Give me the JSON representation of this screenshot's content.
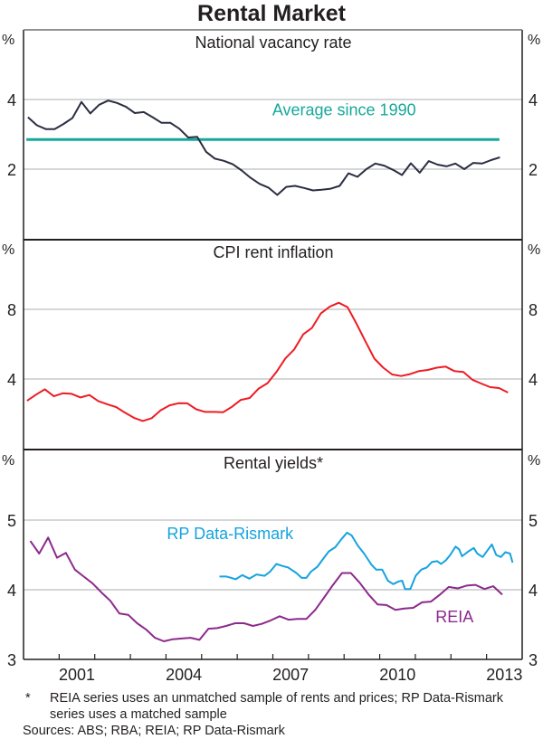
{
  "chart_data": {
    "type": "line",
    "title": "Rental Market",
    "x_range": [
      2000,
      2014
    ],
    "x_ticks": [
      2001,
      2004,
      2007,
      2010,
      2013
    ],
    "x_minor_ticks_every_years": 1,
    "panels": [
      {
        "id": "vacancy",
        "title": "National vacancy rate",
        "unit": "%",
        "ylim": [
          0,
          6
        ],
        "yticks": [
          2,
          4
        ],
        "grid": true,
        "series": [
          {
            "name": "National vacancy rate",
            "color": "#2b2d42",
            "start_year": 2000.125,
            "step_years": 0.25,
            "values": [
              3.49,
              3.26,
              3.15,
              3.15,
              3.3,
              3.47,
              3.93,
              3.6,
              3.85,
              3.97,
              3.9,
              3.79,
              3.61,
              3.64,
              3.49,
              3.33,
              3.33,
              3.16,
              2.91,
              2.93,
              2.5,
              2.3,
              2.24,
              2.14,
              1.96,
              1.75,
              1.58,
              1.47,
              1.26,
              1.49,
              1.52,
              1.46,
              1.39,
              1.41,
              1.44,
              1.52,
              1.88,
              1.78,
              2.0,
              2.16,
              2.1,
              1.98,
              1.83,
              2.17,
              1.9,
              2.23,
              2.13,
              2.08,
              2.16,
              2.0,
              2.18,
              2.16,
              2.26,
              2.34
            ]
          }
        ],
        "reference_lines": [
          {
            "name": "Average since 1990",
            "label": "Average since 1990",
            "color": "#17a89a",
            "value": 2.85,
            "x_from": 2000.08,
            "x_to": 2013.36
          }
        ]
      },
      {
        "id": "cpi",
        "title": "CPI rent inflation",
        "unit": "%",
        "ylim": [
          0,
          12
        ],
        "yticks": [
          4,
          8
        ],
        "grid": true,
        "series": [
          {
            "name": "CPI rent inflation",
            "color": "#ee1c25",
            "start_year": 2000.1,
            "step_years": 0.25,
            "values": [
              2.75,
              3.1,
              3.41,
              3.01,
              3.18,
              3.15,
              2.94,
              3.08,
              2.73,
              2.55,
              2.39,
              2.06,
              1.77,
              1.59,
              1.75,
              2.2,
              2.49,
              2.61,
              2.6,
              2.26,
              2.11,
              2.11,
              2.09,
              2.4,
              2.8,
              2.91,
              3.45,
              3.76,
              4.4,
              5.18,
              5.7,
              6.56,
              6.94,
              7.77,
              8.16,
              8.38,
              8.12,
              7.17,
              6.16,
              5.17,
              4.65,
              4.26,
              4.17,
              4.28,
              4.45,
              4.52,
              4.65,
              4.71,
              4.45,
              4.4,
              3.96,
              3.74,
              3.53,
              3.48,
              3.22
            ]
          }
        ]
      },
      {
        "id": "yields",
        "title": "Rental yields*",
        "unit": "%",
        "ylim": [
          3,
          6
        ],
        "yticks": [
          3,
          4,
          5
        ],
        "grid": true,
        "series": [
          {
            "name": "REIA",
            "label": "REIA",
            "color": "#8c2a8c",
            "start_year": 2000.19,
            "step_years": 0.25,
            "values": [
              4.7,
              4.52,
              4.75,
              4.46,
              4.53,
              4.29,
              4.19,
              4.09,
              3.96,
              3.84,
              3.66,
              3.64,
              3.52,
              3.43,
              3.31,
              3.26,
              3.29,
              3.3,
              3.31,
              3.28,
              3.44,
              3.45,
              3.48,
              3.52,
              3.52,
              3.48,
              3.51,
              3.56,
              3.62,
              3.57,
              3.58,
              3.58,
              3.71,
              3.89,
              4.07,
              4.24,
              4.24,
              4.1,
              3.93,
              3.79,
              3.78,
              3.71,
              3.73,
              3.74,
              3.82,
              3.83,
              3.93,
              4.04,
              4.02,
              4.06,
              4.07,
              4.01,
              4.05,
              3.93
            ]
          },
          {
            "name": "RP Data-Rismark",
            "label": "RP Data-Rismark",
            "color": "#15a3df",
            "points": [
              [
                2005.5,
                4.19
              ],
              [
                2005.7,
                4.19
              ],
              [
                2005.96,
                4.15
              ],
              [
                2006.14,
                4.21
              ],
              [
                2006.34,
                4.16
              ],
              [
                2006.54,
                4.22
              ],
              [
                2006.77,
                4.2
              ],
              [
                2006.92,
                4.26
              ],
              [
                2007.1,
                4.37
              ],
              [
                2007.28,
                4.34
              ],
              [
                2007.43,
                4.32
              ],
              [
                2007.66,
                4.24
              ],
              [
                2007.81,
                4.17
              ],
              [
                2007.94,
                4.17
              ],
              [
                2008.07,
                4.26
              ],
              [
                2008.25,
                4.33
              ],
              [
                2008.42,
                4.45
              ],
              [
                2008.57,
                4.55
              ],
              [
                2008.75,
                4.61
              ],
              [
                2008.93,
                4.73
              ],
              [
                2009.08,
                4.82
              ],
              [
                2009.21,
                4.78
              ],
              [
                2009.39,
                4.63
              ],
              [
                2009.56,
                4.52
              ],
              [
                2009.77,
                4.36
              ],
              [
                2009.9,
                4.29
              ],
              [
                2010.07,
                4.29
              ],
              [
                2010.23,
                4.13
              ],
              [
                2010.38,
                4.08
              ],
              [
                2010.53,
                4.12
              ],
              [
                2010.63,
                4.13
              ],
              [
                2010.71,
                4.01
              ],
              [
                2010.86,
                4.01
              ],
              [
                2011.01,
                4.2
              ],
              [
                2011.17,
                4.29
              ],
              [
                2011.32,
                4.32
              ],
              [
                2011.47,
                4.4
              ],
              [
                2011.62,
                4.41
              ],
              [
                2011.72,
                4.37
              ],
              [
                2011.85,
                4.42
              ],
              [
                2011.98,
                4.5
              ],
              [
                2012.13,
                4.62
              ],
              [
                2012.23,
                4.58
              ],
              [
                2012.31,
                4.48
              ],
              [
                2012.49,
                4.55
              ],
              [
                2012.64,
                4.6
              ],
              [
                2012.74,
                4.52
              ],
              [
                2012.89,
                4.47
              ],
              [
                2013.15,
                4.65
              ],
              [
                2013.27,
                4.5
              ],
              [
                2013.4,
                4.47
              ],
              [
                2013.53,
                4.54
              ],
              [
                2013.66,
                4.52
              ],
              [
                2013.73,
                4.39
              ]
            ]
          }
        ]
      }
    ],
    "annotations": [
      {
        "panel": "vacancy",
        "text": "Average since 1990",
        "anchor_year": 2009.0,
        "anchor_value": 3.55,
        "color": "#17a89a"
      },
      {
        "panel": "yields",
        "text": "RP Data-Rismark",
        "anchor_year": 2005.8,
        "anchor_value": 4.73,
        "color": "#15a3df"
      },
      {
        "panel": "yields",
        "text": "REIA",
        "anchor_year": 2012.1,
        "anchor_value": 3.53,
        "color": "#8c2a8c"
      }
    ]
  },
  "footnote": {
    "marker": "*",
    "text": "REIA series uses an unmatched sample of rents and prices; RP Data-Rismark series uses a matched sample"
  },
  "sources": "Sources: ABS; RBA; REIA; RP Data-Rismark"
}
